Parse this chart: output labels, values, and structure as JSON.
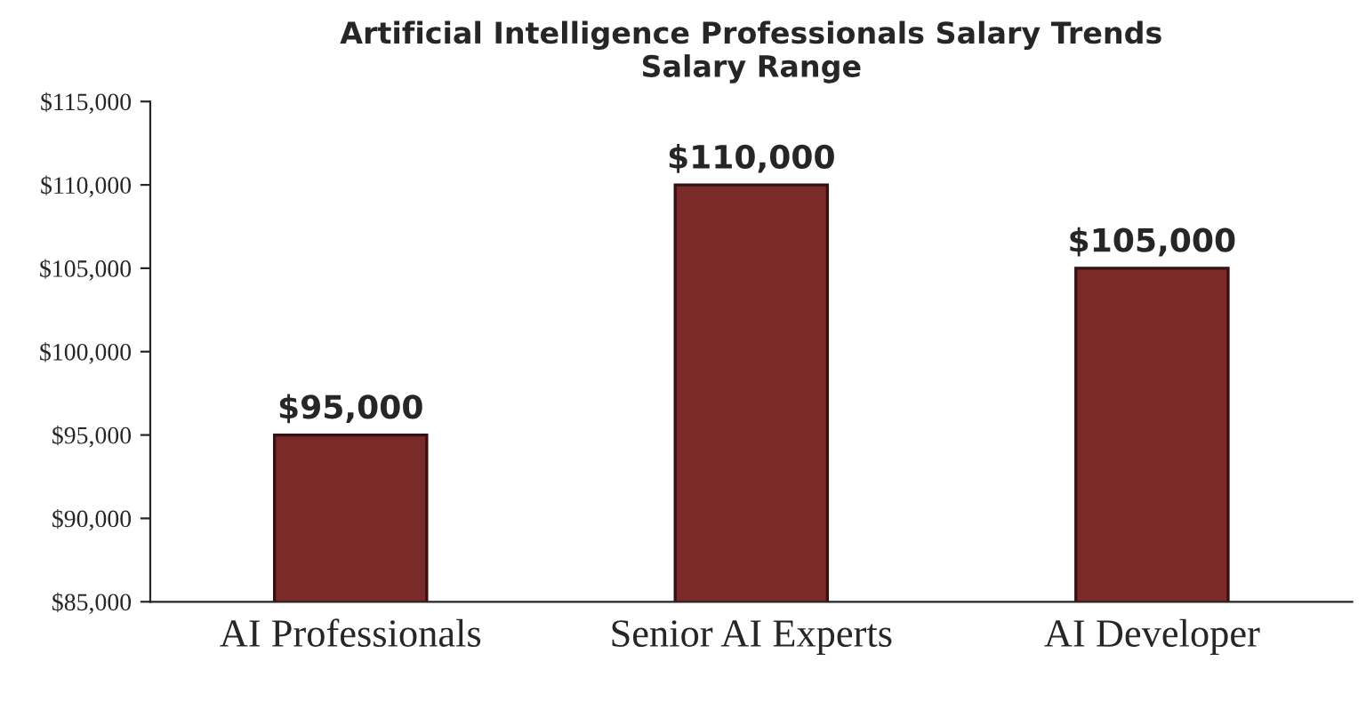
{
  "chart_data": {
    "type": "bar",
    "title": "Artificial Intelligence Professionals Salary Trends\nSalary Range",
    "categories": [
      "AI Professionals",
      "Senior AI Experts",
      "AI Developer"
    ],
    "values": [
      95000,
      110000,
      105000
    ],
    "value_labels": [
      "$95,000",
      "$110,000",
      "$105,000"
    ],
    "color": "#7b2a2a",
    "ylim": [
      85000,
      115000
    ],
    "yticks": [
      {
        "value": 85000,
        "label": "$85,000"
      },
      {
        "value": 90000,
        "label": "$90,000"
      },
      {
        "value": 95000,
        "label": "$95,000"
      },
      {
        "value": 100000,
        "label": "$100,000"
      },
      {
        "value": 105000,
        "label": "$105,000"
      },
      {
        "value": 110000,
        "label": "$110,000"
      },
      {
        "value": 115000,
        "label": "$115,000"
      }
    ],
    "grid": false,
    "legend": false
  }
}
